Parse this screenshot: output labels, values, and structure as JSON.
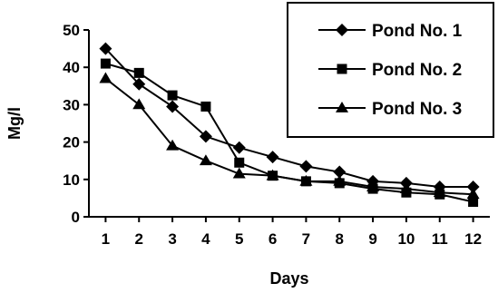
{
  "chart_data": {
    "type": "line",
    "title": "",
    "xlabel": "Days",
    "ylabel": "Mg/l",
    "x": [
      1,
      2,
      3,
      4,
      5,
      6,
      7,
      8,
      9,
      10,
      11,
      12
    ],
    "ylim": [
      0,
      50
    ],
    "yticks": [
      0,
      10,
      20,
      30,
      40,
      50
    ],
    "grid": false,
    "legend_position": "top-right",
    "series": [
      {
        "name": "Pond No. 1",
        "marker": "diamond",
        "values": [
          45,
          35.5,
          29.5,
          21.5,
          18.5,
          16,
          13.5,
          12,
          9.5,
          9,
          8,
          8
        ]
      },
      {
        "name": "Pond No. 2",
        "marker": "square",
        "values": [
          41,
          38.5,
          32.5,
          29.5,
          14.5,
          11,
          9.5,
          9,
          7.5,
          6.5,
          6,
          4
        ]
      },
      {
        "name": "Pond No. 3",
        "marker": "triangle",
        "values": [
          37,
          30,
          19,
          15,
          11.5,
          11,
          9.5,
          9.5,
          8,
          7.5,
          6.5,
          6
        ]
      }
    ]
  }
}
